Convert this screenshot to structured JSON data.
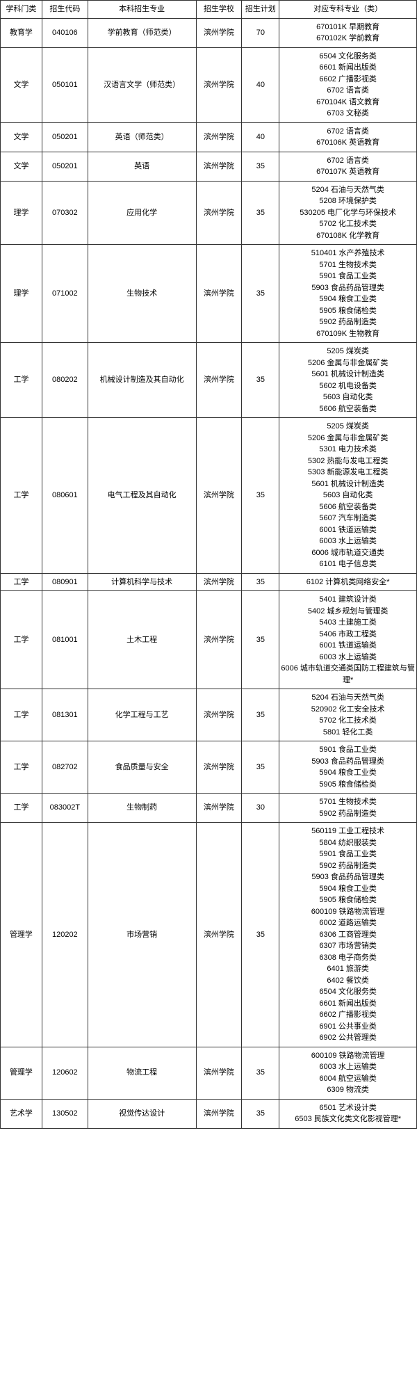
{
  "headers": {
    "category": "学科门类",
    "code": "招生代码",
    "major": "本科招生专业",
    "school": "招生学校",
    "plan": "招生计划",
    "corresponding": "对应专科专业（类）"
  },
  "rows": [
    {
      "category": "教育学",
      "code": "040106",
      "major": "学前教育（师范类）",
      "school": "滨州学院",
      "plan": "70",
      "corresponding": "670101K 早期教育\n670102K 学前教育"
    },
    {
      "category": "文学",
      "code": "050101",
      "major": "汉语言文学（师范类）",
      "school": "滨州学院",
      "plan": "40",
      "corresponding": "6504 文化服务类\n6601 新闻出版类\n6602 广播影视类\n6702 语言类\n670104K 语文教育\n6703 文秘类"
    },
    {
      "category": "文学",
      "code": "050201",
      "major": "英语（师范类）",
      "school": "滨州学院",
      "plan": "40",
      "corresponding": "6702 语言类\n670106K 英语教育"
    },
    {
      "category": "文学",
      "code": "050201",
      "major": "英语",
      "school": "滨州学院",
      "plan": "35",
      "corresponding": "6702 语言类\n670107K 英语教育"
    },
    {
      "category": "理学",
      "code": "070302",
      "major": "应用化学",
      "school": "滨州学院",
      "plan": "35",
      "corresponding": "5204 石油与天然气类\n5208 环境保护类\n530205 电厂化学与环保技术\n5702 化工技术类\n670108K 化学教育"
    },
    {
      "category": "理学",
      "code": "071002",
      "major": "生物技术",
      "school": "滨州学院",
      "plan": "35",
      "corresponding": "510401 水产养殖技术\n5701 生物技术类\n5901 食品工业类\n5903 食品药品管理类\n5904 粮食工业类\n5905 粮食储检类\n5902 药品制造类\n670109K 生物教育"
    },
    {
      "category": "工学",
      "code": "080202",
      "major": "机械设计制造及其自动化",
      "school": "滨州学院",
      "plan": "35",
      "corresponding": "5205 煤炭类\n5206 金属与非金属矿类\n5601 机械设计制造类\n5602 机电设备类\n5603 自动化类\n5606 航空装备类"
    },
    {
      "category": "工学",
      "code": "080601",
      "major": "电气工程及其自动化",
      "school": "滨州学院",
      "plan": "35",
      "corresponding": "5205 煤炭类\n5206 金属与非金属矿类\n5301 电力技术类\n5302 热能与发电工程类\n5303 新能源发电工程类\n5601 机械设计制造类\n5603 自动化类\n5606 航空装备类\n5607 汽车制造类\n6001 铁道运输类\n6003 水上运输类\n6006 城市轨道交通类\n6101 电子信息类"
    },
    {
      "category": "工学",
      "code": "080901",
      "major": "计算机科学与技术",
      "school": "滨州学院",
      "plan": "35",
      "corresponding": "6102 计算机类网络安全*"
    },
    {
      "category": "工学",
      "code": "081001",
      "major": "土木工程",
      "school": "滨州学院",
      "plan": "35",
      "corresponding": "5401 建筑设计类\n5402 城乡规划与管理类\n5403 土建施工类\n5406 市政工程类\n6001 铁道运输类\n6003 水上运输类\n6006 城市轨道交通类国防工程建筑与管理*"
    },
    {
      "category": "工学",
      "code": "081301",
      "major": "化学工程与工艺",
      "school": "滨州学院",
      "plan": "35",
      "corresponding": "5204 石油与天然气类\n520902 化工安全技术\n5702 化工技术类\n5801 轻化工类"
    },
    {
      "category": "工学",
      "code": "082702",
      "major": "食品质量与安全",
      "school": "滨州学院",
      "plan": "35",
      "corresponding": "5901 食品工业类\n5903 食品药品管理类\n5904 粮食工业类\n5905 粮食储检类"
    },
    {
      "category": "工学",
      "code": "083002T",
      "major": "生物制药",
      "school": "滨州学院",
      "plan": "30",
      "corresponding": "5701 生物技术类\n5902 药品制造类"
    },
    {
      "category": "管理学",
      "code": "120202",
      "major": "市场营销",
      "school": "滨州学院",
      "plan": "35",
      "corresponding": "560119 工业工程技术\n5804 纺织服装类\n5901 食品工业类\n5902 药品制造类\n5903 食品药品管理类\n5904 粮食工业类\n5905 粮食储检类\n600109 铁路物流管理\n6002 道路运输类\n6306 工商管理类\n6307 市场营销类\n6308 电子商务类\n6401 旅游类\n6402 餐饮类\n6504 文化服务类\n6601 新闻出版类\n6602 广播影视类\n6901 公共事业类\n6902 公共管理类"
    },
    {
      "category": "管理学",
      "code": "120602",
      "major": "物流工程",
      "school": "滨州学院",
      "plan": "35",
      "corresponding": "600109 铁路物流管理\n6003 水上运输类\n6004 航空运输类\n6309 物流类"
    },
    {
      "category": "艺术学",
      "code": "130502",
      "major": "视觉传达设计",
      "school": "滨州学院",
      "plan": "35",
      "corresponding": "6501 艺术设计类\n6503 民族文化类文化影视管理*"
    }
  ]
}
